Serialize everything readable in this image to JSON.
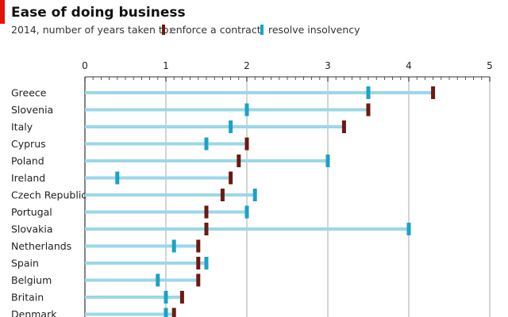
{
  "header": {
    "title": "Ease of doing business",
    "subtitle": "2014, number of years taken to:"
  },
  "colors": {
    "contract": "#6b1a12",
    "insolvency": "#1aa3c5",
    "range_bar": "#9bd7ea",
    "accent": "#e3120b"
  },
  "chart_data": {
    "type": "dot-range",
    "title": "Ease of doing business",
    "subtitle": "2014, number of years taken to:",
    "xlim": [
      0,
      5
    ],
    "xticks": [
      0,
      1,
      2,
      3,
      4,
      5
    ],
    "series": [
      {
        "name": "enforce a contract",
        "key": "contract"
      },
      {
        "name": "resolve insolvency",
        "key": "insolvency"
      }
    ],
    "countries": [
      {
        "name": "Greece",
        "contract": 4.3,
        "insolvency": 3.5
      },
      {
        "name": "Slovenia",
        "contract": 3.5,
        "insolvency": 2.0
      },
      {
        "name": "Italy",
        "contract": 3.2,
        "insolvency": 1.8
      },
      {
        "name": "Cyprus",
        "contract": 2.0,
        "insolvency": 1.5
      },
      {
        "name": "Poland",
        "contract": 1.9,
        "insolvency": 3.0
      },
      {
        "name": "Ireland",
        "contract": 1.8,
        "insolvency": 0.4
      },
      {
        "name": "Czech Republic",
        "contract": 1.7,
        "insolvency": 2.1
      },
      {
        "name": "Portugal",
        "contract": 1.5,
        "insolvency": 2.0
      },
      {
        "name": "Slovakia",
        "contract": 1.5,
        "insolvency": 4.0
      },
      {
        "name": "Netherlands",
        "contract": 1.4,
        "insolvency": 1.1
      },
      {
        "name": "Spain",
        "contract": 1.4,
        "insolvency": 1.5
      },
      {
        "name": "Belgium",
        "contract": 1.4,
        "insolvency": 0.9
      },
      {
        "name": "Britain",
        "contract": 1.2,
        "insolvency": 1.0
      },
      {
        "name": "Denmark",
        "contract": 1.1,
        "insolvency": 1.0
      }
    ]
  }
}
